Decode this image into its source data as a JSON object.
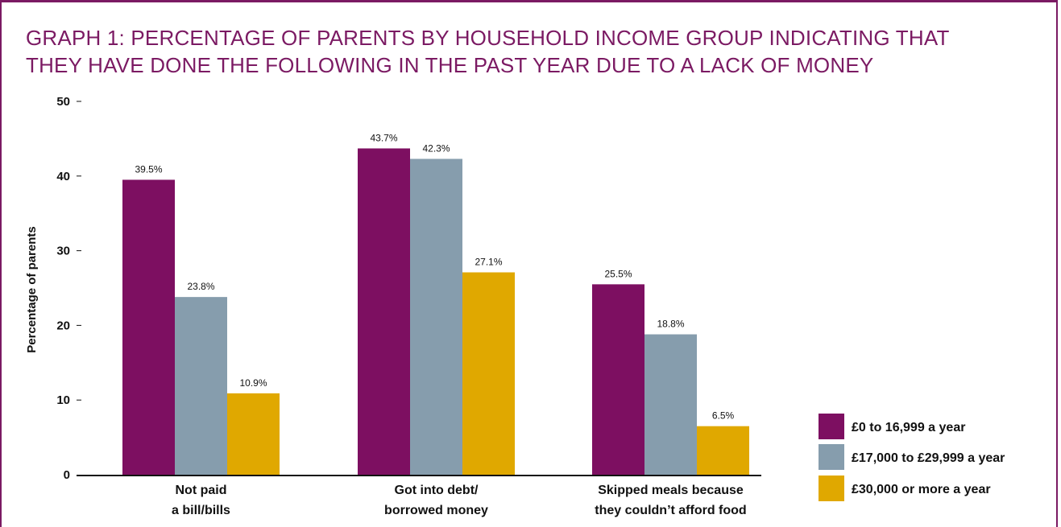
{
  "title_line1": "GRAPH 1: PERCENTAGE OF PARENTS BY HOUSEHOLD INCOME GROUP INDICATING THAT",
  "title_line2": "THEY HAVE DONE THE FOLLOWING IN THE PAST YEAR DUE TO A LACK OF MONEY",
  "colors": {
    "border": "#7b1a63",
    "title": "#7b1a63"
  },
  "chart_data": {
    "type": "bar",
    "ylabel": "Percentage of parents",
    "ylim": [
      0,
      50
    ],
    "yticks": [
      0,
      10,
      20,
      30,
      40,
      50
    ],
    "categories": [
      [
        "Not paid",
        "a bill/bills"
      ],
      [
        "Got into debt/",
        "borrowed money"
      ],
      [
        "Skipped meals because",
        "they couldn’t afford food"
      ]
    ],
    "series": [
      {
        "name": "£0 to 16,999 a year",
        "color": "#7d0f61",
        "values": [
          39.5,
          43.7,
          25.5
        ],
        "labels": [
          "39.5%",
          "43.7%",
          "25.5%"
        ]
      },
      {
        "name": "£17,000 to £29,999 a year",
        "color": "#869dad",
        "values": [
          23.8,
          42.3,
          18.8
        ],
        "labels": [
          "23.8%",
          "42.3%",
          "18.8%"
        ]
      },
      {
        "name": "£30,000 or more a year",
        "color": "#e0a800",
        "values": [
          10.9,
          27.1,
          6.5
        ],
        "labels": [
          "10.9%",
          "27.1%",
          "6.5%"
        ]
      }
    ],
    "legend_position": "bottom-right",
    "grid": false
  }
}
